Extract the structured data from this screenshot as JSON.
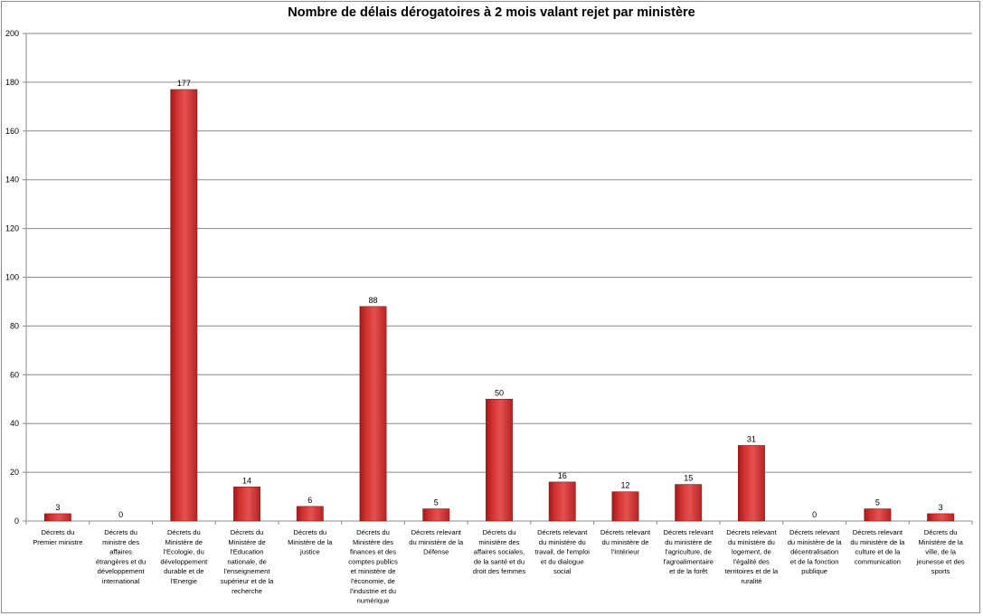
{
  "chart_data": {
    "type": "bar",
    "title": "Nombre de délais dérogatoires à 2 mois valant rejet par ministère",
    "xlabel": "",
    "ylabel": "",
    "ylim": [
      0,
      200
    ],
    "yticks": [
      0,
      20,
      40,
      60,
      80,
      100,
      120,
      140,
      160,
      180,
      200
    ],
    "grid": true,
    "legend": "none",
    "bar_color": "#d0302f",
    "categories": [
      [
        "Décrets du",
        "Premier ministre"
      ],
      [
        "Décrets du",
        "ministre des",
        "affaires",
        "étrangères et du",
        "développement",
        "international"
      ],
      [
        "Décrets du",
        "Ministère de",
        "l'Ecologie, du",
        "développement",
        "durable et de",
        "l'Energie"
      ],
      [
        "Décrets du",
        "Ministère de",
        "l'Education",
        "nationale, de",
        "l'enseignement",
        "supérieur et de la",
        "recherche"
      ],
      [
        "Décrets du",
        "Ministère de la",
        "justice"
      ],
      [
        "Décrets du",
        "Ministère des",
        "finances et des",
        "comptes publics",
        "et ministère de",
        "l'économie, de",
        "l'industrie et du",
        "numérique"
      ],
      [
        "Décrets relevant",
        "du ministère de la",
        "Défense"
      ],
      [
        "Décrets du",
        "ministère des",
        "affaires sociales,",
        "de la santé et du",
        "droit des femmes"
      ],
      [
        "Décrets relevant",
        "du ministère du",
        "travail, de l'emploi",
        "et du dialogue",
        "social"
      ],
      [
        "Décrets relevant",
        "du ministère de",
        "l'Intérieur"
      ],
      [
        "Décrets relevant",
        "du ministère de",
        "l'agriculture, de",
        "l'agroalimentaire",
        "et de la forêt"
      ],
      [
        "Décrets relevant",
        "du ministère du",
        "logement, de",
        "l'égalité des",
        "territoires et de la",
        "ruralité"
      ],
      [
        "Décrets relevant",
        "du ministère de la",
        "décentralisation",
        "et de la fonction",
        "publique"
      ],
      [
        "Décrets relevant",
        "du ministère de la",
        "culture et de la",
        "communication"
      ],
      [
        "Décrets du",
        "Ministère de la",
        "ville, de la",
        "jeunesse et des",
        "sports"
      ]
    ],
    "values": [
      3,
      0,
      177,
      14,
      6,
      88,
      5,
      50,
      16,
      12,
      15,
      31,
      0,
      5,
      3
    ]
  }
}
